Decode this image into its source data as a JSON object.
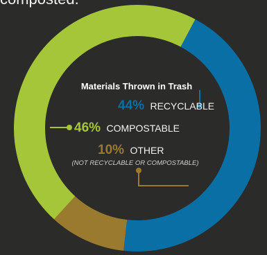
{
  "top_fragment": "composted.",
  "colors": {
    "background": "#2b2b2a",
    "recyclable": "#0a6fa4",
    "compostable": "#a6c639",
    "other": "#9a7a2e",
    "title": "#ffffff",
    "note": "#cfcfcf"
  },
  "chart_data": {
    "type": "pie",
    "style": "donut",
    "title": "Materials Thrown in Trash",
    "slices": [
      {
        "label": "RECYCLABLE",
        "value": 44,
        "display": "44%",
        "color": "#0a6fa4"
      },
      {
        "label": "OTHER",
        "value": 10,
        "display": "10%",
        "color": "#9a7a2e",
        "note": "(NOT RECYCLABLE OR COMPOSTABLE)"
      },
      {
        "label": "COMPOSTABLE",
        "value": 46,
        "display": "46%",
        "color": "#a6c639"
      }
    ],
    "start_angle_deg": -62,
    "direction": "clockwise"
  }
}
